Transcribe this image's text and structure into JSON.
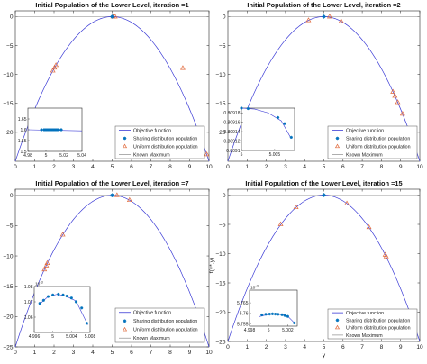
{
  "colors": {
    "curve": "#3b3bd6",
    "sharing": "#0072bd",
    "uniform": "#e0683a",
    "known_max": "#9a9a9a",
    "axes": "#262626"
  },
  "chart_data": [
    {
      "type": "line",
      "title": "Initial Population of the Lower Level, iteration =1",
      "xlabel": "",
      "ylabel": "",
      "xlim": [
        0,
        10
      ],
      "ylim": [
        -25,
        1
      ],
      "xticks": [
        0,
        1,
        2,
        3,
        4,
        5,
        6,
        7,
        8,
        9,
        10
      ],
      "yticks": [
        0,
        -5,
        -10,
        -15,
        -20
      ],
      "known_maximum": 0,
      "objective": "-(y-5)^2",
      "sharing_points": [
        [
          5,
          0
        ]
      ],
      "uniform_points": [
        [
          1.94,
          -9.35
        ],
        [
          2.02,
          -8.85
        ],
        [
          2.1,
          -8.4
        ],
        [
          5.05,
          0
        ],
        [
          5.15,
          0
        ],
        [
          8.65,
          -8.9
        ],
        [
          9.88,
          -23.8
        ]
      ],
      "legend": {
        "position": "bottom-right",
        "entries": [
          "Objective function",
          "Sharing distribution population",
          "Uniform distribution population",
          "Known Maximum"
        ]
      },
      "inset": {
        "position": "bottom-left",
        "xlim": [
          4.98,
          5.04
        ],
        "ylim": [
          1.5,
          1.7
        ],
        "xticks": [
          4.98,
          5,
          5.02,
          5.04
        ],
        "yticks": [
          1.5,
          1.55,
          1.6,
          1.65
        ],
        "exponent": "",
        "curve": [
          [
            4.98,
            1.6
          ],
          [
            5.04,
            1.595
          ]
        ],
        "sharing_points": [
          [
            4.995,
            1.6
          ],
          [
            4.998,
            1.6
          ],
          [
            5.0,
            1.6
          ],
          [
            5.002,
            1.6
          ],
          [
            5.004,
            1.6
          ],
          [
            5.006,
            1.6
          ],
          [
            5.008,
            1.6
          ],
          [
            5.01,
            1.6
          ],
          [
            5.012,
            1.6
          ],
          [
            5.014,
            1.6
          ],
          [
            5.017,
            1.6
          ]
        ]
      }
    },
    {
      "type": "line",
      "title": "Initial Population of the Lower Level, iteration =2",
      "xlabel": "",
      "ylabel": "",
      "xlim": [
        0,
        10
      ],
      "ylim": [
        -25,
        1
      ],
      "xticks": [
        0,
        1,
        2,
        3,
        4,
        5,
        6,
        7,
        8,
        9,
        10
      ],
      "yticks": [
        0,
        -5,
        -10,
        -15,
        -20
      ],
      "known_maximum": 0,
      "objective": "-(y-5)^2",
      "sharing_points": [
        [
          5,
          0
        ]
      ],
      "uniform_points": [
        [
          4.2,
          -0.64
        ],
        [
          5.3,
          0
        ],
        [
          5.9,
          -0.8
        ],
        [
          8.6,
          -13
        ],
        [
          8.7,
          -13.7
        ],
        [
          8.85,
          -14.8
        ],
        [
          9.1,
          -16.8
        ]
      ],
      "legend": {
        "position": "bottom-right",
        "entries": [
          "Objective function",
          "Sharing distribution population",
          "Uniform distribution population",
          "Known Maximum"
        ]
      },
      "inset": {
        "position": "bottom-left",
        "xlim": [
          5,
          5.008
        ],
        "ylim": [
          0.8091,
          0.80919
        ],
        "xticks": [
          5,
          5.005
        ],
        "yticks": [
          0.80918,
          0.80916,
          0.80914,
          0.80912,
          0.8091
        ],
        "exponent": "",
        "curve": [
          [
            5.0,
            0.80919
          ],
          [
            5.002,
            0.809188
          ],
          [
            5.004,
            0.80918
          ],
          [
            5.006,
            0.809163
          ],
          [
            5.0075,
            0.809125
          ]
        ],
        "sharing_points": [
          [
            5.0,
            0.80919
          ],
          [
            5.001,
            0.809189
          ],
          [
            5.0055,
            0.80917
          ],
          [
            5.0065,
            0.809157
          ],
          [
            5.0075,
            0.809128
          ]
        ]
      }
    },
    {
      "type": "line",
      "title": "Initial Population of the Lower Level, iteration =7",
      "xlabel": "",
      "ylabel": "",
      "xlim": [
        0,
        10
      ],
      "ylim": [
        -25,
        1
      ],
      "xticks": [
        0,
        1,
        2,
        3,
        4,
        5,
        6,
        7,
        8,
        9,
        10
      ],
      "yticks": [
        0,
        -5,
        -10,
        -15,
        -20,
        -25
      ],
      "known_maximum": 0,
      "objective": "-(y-5)^2",
      "sharing_points": [
        [
          5,
          0
        ]
      ],
      "uniform_points": [
        [
          1.5,
          -12.25
        ],
        [
          1.6,
          -11.6
        ],
        [
          1.65,
          -11.2
        ],
        [
          2.45,
          -6.5
        ],
        [
          5.25,
          0
        ],
        [
          5.9,
          -0.8
        ]
      ],
      "legend": {
        "position": "bottom-right",
        "entries": [
          "Objective function",
          "Sharing distribution population",
          "Uniform distribution population",
          "Known Maximum"
        ]
      },
      "inset": {
        "position": "bottom-left",
        "xlim": [
          4.996,
          5.008
        ],
        "ylim": [
          1.05,
          1.08
        ],
        "xticks": [
          4.996,
          5,
          5.004,
          5.008
        ],
        "yticks": [
          1.08,
          1.07,
          1.06
        ],
        "exponent": "10^-3",
        "curve": [
          [
            4.997,
            1.068
          ],
          [
            4.999,
            1.0735
          ],
          [
            5.001,
            1.075
          ],
          [
            5.003,
            1.0735
          ],
          [
            5.005,
            1.0705
          ],
          [
            5.0075,
            1.055
          ]
        ],
        "sharing_points": [
          [
            4.9972,
            1.069
          ],
          [
            4.998,
            1.071
          ],
          [
            4.999,
            1.0735
          ],
          [
            5.0,
            1.0745
          ],
          [
            5.0012,
            1.075
          ],
          [
            5.0022,
            1.0745
          ],
          [
            5.003,
            1.0738
          ],
          [
            5.004,
            1.0725
          ],
          [
            5.005,
            1.07
          ],
          [
            5.0062,
            1.066
          ],
          [
            5.0073,
            1.056
          ]
        ]
      }
    },
    {
      "type": "line",
      "title": "Initial Population of the Lower Level, iteration =15",
      "xlabel": "y",
      "ylabel": "f(x*,y)",
      "xlim": [
        0,
        10
      ],
      "ylim": [
        -25,
        1
      ],
      "xticks": [
        0,
        1,
        2,
        3,
        4,
        5,
        6,
        7,
        8,
        9,
        10
      ],
      "yticks": [
        0,
        -5,
        -10,
        -15,
        -20,
        -25
      ],
      "known_maximum": 0,
      "objective": "-(y-5)^2",
      "sharing_points": [
        [
          5,
          0
        ]
      ],
      "uniform_points": [
        [
          2.75,
          -5.0
        ],
        [
          3.55,
          -2.1
        ],
        [
          6.2,
          -1.45
        ],
        [
          7.35,
          -5.5
        ],
        [
          8.2,
          -10.2
        ],
        [
          8.25,
          -10.5
        ]
      ],
      "legend": {
        "position": "bottom-right",
        "entries": [
          "Objective function",
          "Sharing distribution population",
          "Uniform distribution population",
          "Known Maximum"
        ]
      },
      "inset": {
        "position": "bottom-left",
        "xlim": [
          4.998,
          5.003
        ],
        "ylim": [
          5.754,
          5.771
        ],
        "xticks": [
          4.998,
          5,
          5.002
        ],
        "yticks": [
          5.765,
          5.76,
          5.755
        ],
        "exponent": "10^-3",
        "curve": [
          [
            4.999,
            5.7585
          ],
          [
            5.0,
            5.7596
          ],
          [
            5.001,
            5.7597
          ],
          [
            5.002,
            5.7587
          ],
          [
            5.0027,
            5.7555
          ]
        ],
        "sharing_points": [
          [
            4.9993,
            5.7593
          ],
          [
            4.9997,
            5.7596
          ],
          [
            5.0001,
            5.7597
          ],
          [
            5.0004,
            5.7598
          ],
          [
            5.0007,
            5.7597
          ],
          [
            5.001,
            5.7596
          ],
          [
            5.0014,
            5.7594
          ],
          [
            5.0017,
            5.759
          ],
          [
            5.002,
            5.7586
          ],
          [
            5.0027,
            5.7555
          ]
        ]
      }
    }
  ]
}
